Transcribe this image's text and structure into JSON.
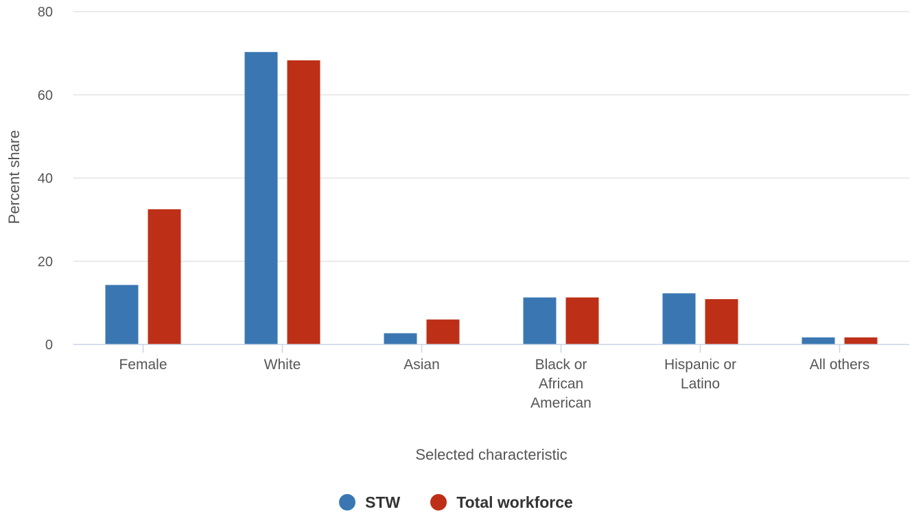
{
  "colors": {
    "stw": "#3a77b2",
    "total": "#bd3017"
  },
  "chart_data": {
    "type": "bar",
    "xlabel": "Selected characteristic",
    "ylabel": "Percent share",
    "ylim": [
      0,
      80
    ],
    "yticks": [
      "0",
      "20",
      "40",
      "60",
      "80"
    ],
    "grid": true,
    "legend_position": "bottom",
    "categories": [
      [
        "Female"
      ],
      [
        "White"
      ],
      [
        "Asian"
      ],
      [
        "Black or",
        "African",
        "American"
      ],
      [
        "Hispanic or",
        "Latino"
      ],
      [
        "All others"
      ]
    ],
    "series": [
      {
        "name": "STW",
        "values": [
          14.3,
          70.3,
          2.7,
          11.3,
          12.3,
          1.7
        ]
      },
      {
        "name": "Total workforce",
        "values": [
          32.5,
          68.3,
          6.0,
          11.3,
          10.9,
          1.7
        ]
      }
    ]
  }
}
